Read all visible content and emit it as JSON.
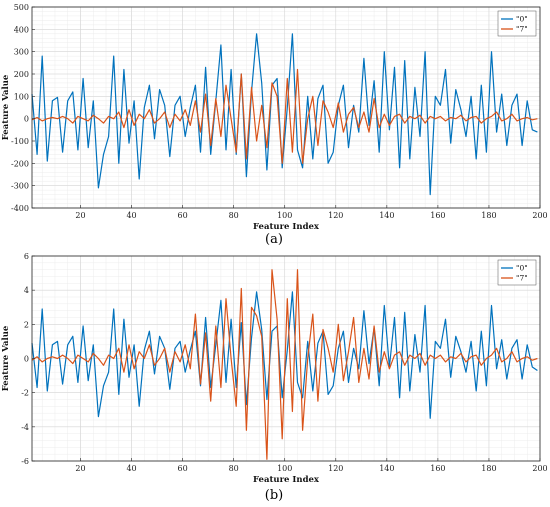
{
  "chart_data": [
    {
      "type": "line",
      "panel_caption": "(a)",
      "xlabel": "Feature Index",
      "ylabel": "Feature Value",
      "xlim": [
        1,
        200
      ],
      "ylim": [
        -400,
        500
      ],
      "xticks": [
        20,
        40,
        60,
        80,
        100,
        120,
        140,
        160,
        180,
        200
      ],
      "yticks": [
        -400,
        -300,
        -200,
        -100,
        0,
        100,
        200,
        300,
        400,
        500
      ],
      "grid": true,
      "legend_position": "top-right",
      "x": [
        1,
        3,
        5,
        7,
        9,
        11,
        13,
        15,
        17,
        19,
        21,
        23,
        25,
        27,
        29,
        31,
        33,
        35,
        37,
        39,
        41,
        43,
        45,
        47,
        49,
        51,
        53,
        55,
        57,
        59,
        61,
        63,
        65,
        67,
        69,
        71,
        73,
        75,
        77,
        79,
        81,
        83,
        85,
        87,
        89,
        91,
        93,
        95,
        97,
        99,
        101,
        103,
        105,
        107,
        109,
        111,
        113,
        115,
        117,
        119,
        121,
        123,
        125,
        127,
        129,
        131,
        133,
        135,
        137,
        139,
        141,
        143,
        145,
        147,
        149,
        151,
        153,
        155,
        157,
        159,
        161,
        163,
        165,
        167,
        169,
        171,
        173,
        175,
        177,
        179,
        181,
        183,
        185,
        187,
        189,
        191,
        193,
        195,
        197,
        199
      ],
      "series": [
        {
          "name": "\"0\"",
          "color": "#0072BD",
          "values": [
            110,
            -160,
            280,
            -190,
            80,
            95,
            -150,
            80,
            120,
            -140,
            180,
            -130,
            80,
            -310,
            -160,
            -80,
            280,
            -200,
            220,
            -110,
            80,
            -270,
            50,
            150,
            -90,
            130,
            60,
            -170,
            60,
            100,
            -80,
            50,
            150,
            -150,
            230,
            -160,
            80,
            330,
            -140,
            220,
            -160,
            200,
            -260,
            120,
            380,
            160,
            -230,
            150,
            180,
            -220,
            50,
            380,
            -140,
            -220,
            100,
            -180,
            90,
            150,
            -200,
            -150,
            60,
            150,
            -130,
            60,
            -60,
            270,
            -30,
            170,
            -150,
            300,
            -50,
            230,
            -220,
            260,
            -180,
            140,
            -80,
            300,
            -340,
            100,
            60,
            220,
            -110,
            130,
            40,
            -80,
            100,
            -180,
            150,
            -150,
            300,
            -60,
            110,
            -120,
            60,
            110,
            -120,
            80,
            -50,
            -60
          ]
        },
        {
          "name": "\"7\"",
          "color": "#D95319",
          "values": [
            -5,
            5,
            -10,
            0,
            5,
            0,
            10,
            0,
            -20,
            10,
            0,
            -10,
            15,
            0,
            -20,
            10,
            0,
            30,
            -40,
            40,
            -30,
            20,
            0,
            40,
            -20,
            0,
            30,
            -40,
            20,
            -10,
            40,
            -30,
            80,
            -60,
            110,
            -120,
            90,
            -80,
            150,
            0,
            -150,
            200,
            -180,
            140,
            -100,
            60,
            -130,
            160,
            100,
            -200,
            180,
            -150,
            220,
            -200,
            0,
            100,
            -120,
            80,
            30,
            -40,
            70,
            -60,
            20,
            50,
            -40,
            30,
            -60,
            90,
            -40,
            20,
            -30,
            10,
            20,
            -20,
            10,
            0,
            15,
            -20,
            10,
            0,
            10,
            -10,
            5,
            0,
            15,
            -10,
            5,
            10,
            -20,
            0,
            10,
            30,
            -10,
            0,
            20,
            -10,
            0,
            5,
            -5,
            0
          ]
        }
      ]
    },
    {
      "type": "line",
      "panel_caption": "(b)",
      "xlabel": "Feature Index",
      "ylabel": "Feature Value",
      "xlim": [
        1,
        200
      ],
      "ylim": [
        -6,
        6
      ],
      "xticks": [
        20,
        40,
        60,
        80,
        100,
        120,
        140,
        160,
        180,
        200
      ],
      "yticks": [
        -6,
        -4,
        -2,
        0,
        2,
        4,
        6
      ],
      "grid": true,
      "legend_position": "top-right",
      "x": [
        1,
        3,
        5,
        7,
        9,
        11,
        13,
        15,
        17,
        19,
        21,
        23,
        25,
        27,
        29,
        31,
        33,
        35,
        37,
        39,
        41,
        43,
        45,
        47,
        49,
        51,
        53,
        55,
        57,
        59,
        61,
        63,
        65,
        67,
        69,
        71,
        73,
        75,
        77,
        79,
        81,
        83,
        85,
        87,
        89,
        91,
        93,
        95,
        97,
        99,
        101,
        103,
        105,
        107,
        109,
        111,
        113,
        115,
        117,
        119,
        121,
        123,
        125,
        127,
        129,
        131,
        133,
        135,
        137,
        139,
        141,
        143,
        145,
        147,
        149,
        151,
        153,
        155,
        157,
        159,
        161,
        163,
        165,
        167,
        169,
        171,
        173,
        175,
        177,
        179,
        181,
        183,
        185,
        187,
        189,
        191,
        193,
        195,
        197,
        199
      ],
      "series": [
        {
          "name": "\"0\"",
          "color": "#0072BD",
          "values": [
            0.9,
            -1.7,
            2.9,
            -1.9,
            0.8,
            1.0,
            -1.5,
            0.8,
            1.3,
            -1.4,
            1.9,
            -1.3,
            0.8,
            -3.4,
            -1.6,
            -0.8,
            2.9,
            -2.1,
            2.3,
            -1.1,
            0.8,
            -2.8,
            0.5,
            1.6,
            -0.9,
            1.3,
            0.6,
            -1.8,
            0.6,
            1.0,
            -0.8,
            0.5,
            1.6,
            -1.6,
            2.4,
            -1.7,
            0.8,
            3.4,
            -1.4,
            2.3,
            -1.7,
            2.1,
            -2.7,
            1.2,
            3.9,
            1.7,
            -2.4,
            1.6,
            1.9,
            -2.3,
            0.5,
            3.9,
            -1.4,
            -2.3,
            1.0,
            -1.9,
            0.9,
            1.6,
            -2.1,
            -1.6,
            0.6,
            1.6,
            -1.4,
            0.6,
            -0.6,
            2.8,
            -0.3,
            1.8,
            -1.6,
            3.1,
            -0.5,
            2.4,
            -2.3,
            2.7,
            -1.9,
            1.4,
            -0.8,
            3.1,
            -3.5,
            1.0,
            0.6,
            2.3,
            -1.1,
            1.3,
            0.4,
            -0.8,
            1.0,
            -1.9,
            1.6,
            -1.6,
            3.1,
            -0.6,
            1.1,
            -1.2,
            0.6,
            1.1,
            -1.2,
            0.8,
            -0.5,
            -0.7
          ]
        },
        {
          "name": "\"7\"",
          "color": "#D95319",
          "values": [
            -0.1,
            0.1,
            -0.2,
            0.0,
            0.1,
            0.0,
            0.2,
            0.0,
            -0.3,
            0.2,
            0.0,
            -0.2,
            0.3,
            0.0,
            -0.4,
            0.2,
            0.0,
            0.6,
            -0.8,
            0.8,
            -0.6,
            0.4,
            0.0,
            0.8,
            -0.4,
            0.0,
            0.6,
            -0.8,
            0.4,
            -0.2,
            0.8,
            -0.6,
            2.6,
            -1.5,
            1.5,
            -2.5,
            1.9,
            -1.7,
            3.5,
            0.0,
            -2.8,
            4.1,
            -4.2,
            3.0,
            2.5,
            1.3,
            -5.9,
            5.2,
            2.3,
            -4.7,
            3.5,
            -3.1,
            5.2,
            -4.2,
            0.0,
            2.6,
            -2.5,
            1.7,
            0.6,
            -0.8,
            2.0,
            -1.3,
            0.4,
            2.4,
            -1.4,
            0.6,
            -1.2,
            1.9,
            -0.8,
            0.4,
            -0.6,
            0.2,
            0.4,
            -0.4,
            0.2,
            0.0,
            0.3,
            -0.4,
            0.2,
            0.0,
            0.2,
            -0.2,
            0.1,
            0.0,
            0.3,
            -0.2,
            0.1,
            0.2,
            -0.4,
            0.0,
            0.2,
            0.6,
            -0.2,
            0.0,
            0.4,
            -0.2,
            0.0,
            0.1,
            -0.1,
            0.0
          ]
        }
      ]
    }
  ]
}
